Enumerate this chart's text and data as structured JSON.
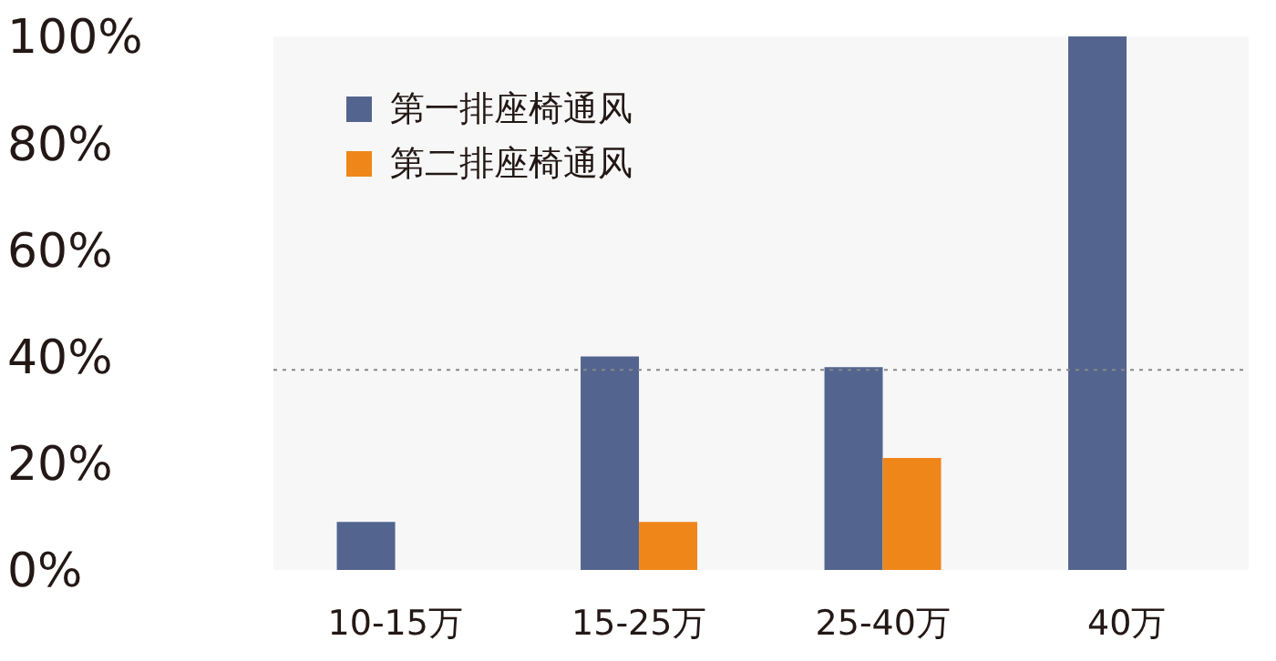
{
  "chart_data": {
    "type": "bar",
    "categories": [
      "10-15万",
      "15-25万",
      "25-40万",
      "40万"
    ],
    "series": [
      {
        "name": "第一排座椅通风",
        "color": "#53658f",
        "values": [
          9,
          40,
          38,
          100
        ]
      },
      {
        "name": "第二排座椅通风",
        "color": "#ef861a",
        "values": [
          null,
          9,
          21,
          null
        ]
      }
    ],
    "ylim": [
      0,
      100
    ],
    "yticks": [
      {
        "value": 0,
        "label": "0%"
      },
      {
        "value": 20,
        "label": "20%"
      },
      {
        "value": 40,
        "label": "40%"
      },
      {
        "value": 60,
        "label": "60%"
      },
      {
        "value": 80,
        "label": "80%"
      },
      {
        "value": 100,
        "label": "100%"
      }
    ],
    "ref_lines": [
      {
        "axis": "y",
        "value": 37.5,
        "color": "#888888",
        "line_style": "dotted"
      }
    ],
    "grid": false,
    "legend": "top left"
  }
}
